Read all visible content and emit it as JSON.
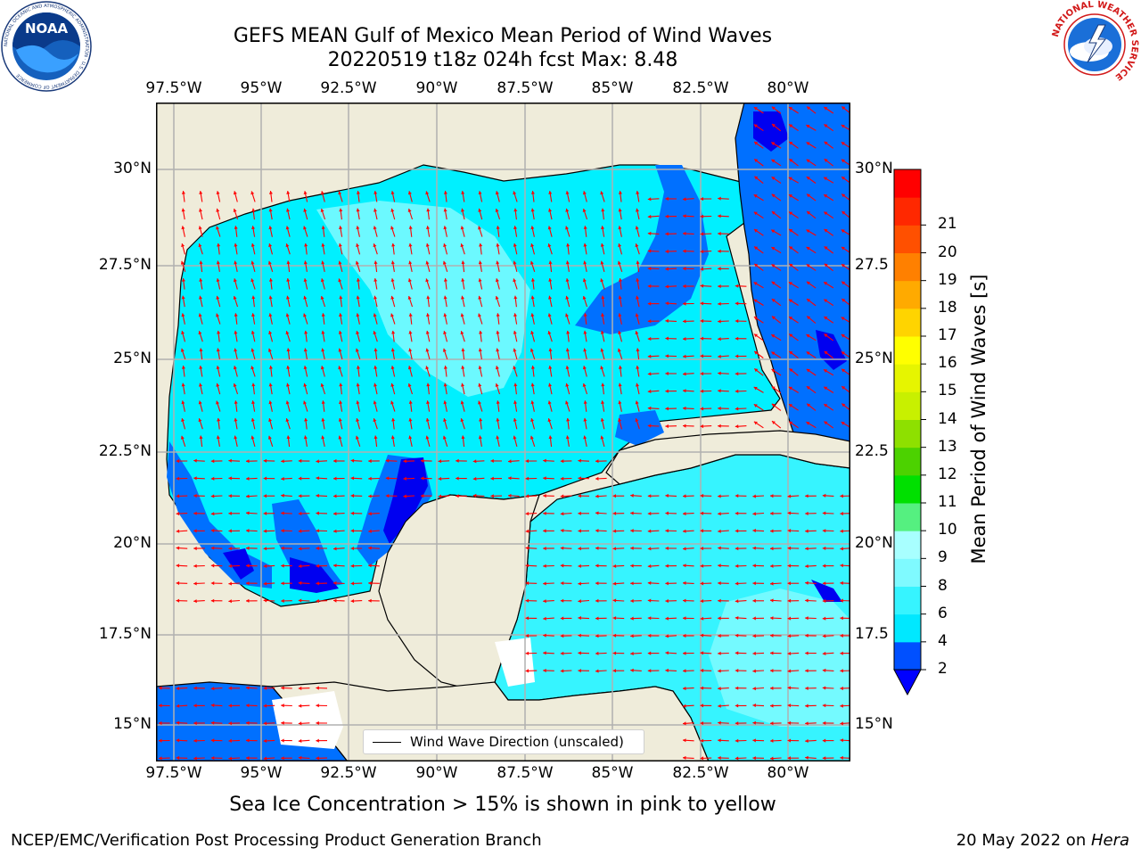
{
  "title": {
    "line1": "GEFS MEAN Gulf of Mexico Mean Period of Wind Waves",
    "line2": "20220519 t18z 024h fcst   Max: 8.48"
  },
  "lon_labels": [
    "97.5°W",
    "95°W",
    "92.5°W",
    "90°W",
    "87.5°W",
    "85°W",
    "82.5°W",
    "80°W"
  ],
  "lat_labels": [
    "30°N",
    "27.5°N",
    "25°N",
    "22.5°N",
    "20°N",
    "17.5°N",
    "15°N"
  ],
  "lat_labels_right": [
    "30°N",
    "27.5",
    "25°N",
    "22.5",
    "20°N",
    "17.5",
    "15°N"
  ],
  "legend_label": "Wind Wave Direction (unscaled)",
  "colorbar": {
    "title": "Mean Period of Wind Waves [s]",
    "ticks": [
      "2",
      "4",
      "6",
      "8",
      "9",
      "10",
      "11",
      "12",
      "13",
      "14",
      "15",
      "16",
      "17",
      "18",
      "19",
      "20",
      "21"
    ],
    "colors": [
      "#0050ff",
      "#00e8ff",
      "#36f4ff",
      "#7ffaff",
      "#a8ffff",
      "#55f080",
      "#00e000",
      "#4cd200",
      "#8ee000",
      "#c8f000",
      "#e6f500",
      "#ffff00",
      "#ffd400",
      "#ffaa00",
      "#ff8000",
      "#ff5000",
      "#ff2800",
      "#ff0000"
    ],
    "under_color": "#0000ff"
  },
  "map_colors": {
    "land": "#efecda",
    "ocean_cyan": "#00f0ff",
    "ocean_light": "#80ffff",
    "ocean_blue": "#0070ff",
    "ocean_dark": "#0000f0",
    "arrow": "#ff0000"
  },
  "note": "Sea Ice Concentration > 15% is shown in pink to yellow",
  "footer_left": "NCEP/EMC/Verification Post Processing Product Generation Branch",
  "footer_right_prefix": "20 May 2022 on ",
  "footer_right_host": "Hera",
  "logos": {
    "left": {
      "text": "NOAA",
      "ring": "NATIONAL OCEANIC AND ATMOSPHERIC ADMINISTRATION · U.S. DEPARTMENT OF COMMERCE"
    },
    "right": {
      "ring": "NATIONAL WEATHER SERVICE"
    }
  }
}
